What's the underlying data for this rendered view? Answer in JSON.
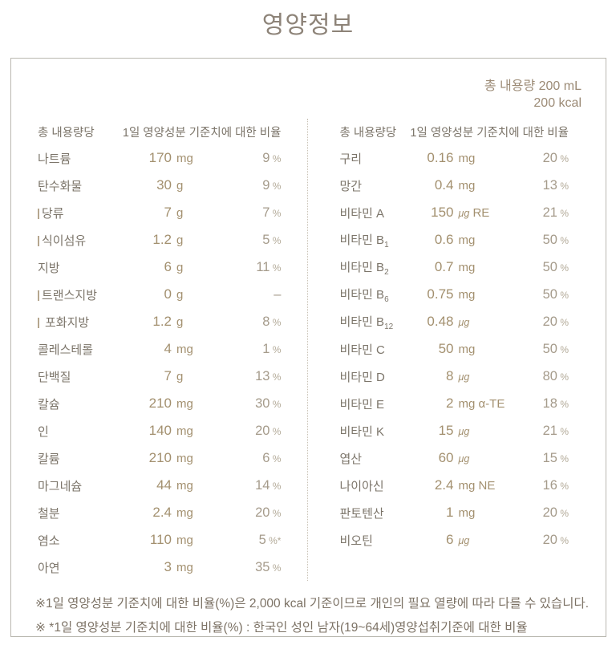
{
  "title": "영양정보",
  "total": {
    "line1": "총 내용량 200 mL",
    "line2": "200 kcal"
  },
  "table_header": {
    "col1": "총 내용량당",
    "col2": "1일 영양성분 기준치에 대한 비율"
  },
  "left_rows": [
    {
      "label": "나트륨",
      "amount": "170",
      "unit": "mg",
      "dv": "9",
      "dv_sym": "%"
    },
    {
      "label": "탄수화물",
      "amount": "30",
      "unit": "g",
      "dv": "9",
      "dv_sym": "%"
    },
    {
      "label": "당류",
      "indent": true,
      "amount": "7",
      "unit": "g",
      "dv": "7",
      "dv_sym": "%"
    },
    {
      "label": "식이섬유",
      "indent": true,
      "amount": "1.2",
      "unit": "g",
      "dv": "5",
      "dv_sym": "%"
    },
    {
      "label": "지방",
      "amount": "6",
      "unit": "g",
      "dv": "11",
      "dv_sym": "%"
    },
    {
      "label": "트랜스지방",
      "indent": true,
      "amount": "0",
      "unit": "g",
      "dv": "–",
      "dv_sym": ""
    },
    {
      "label": "포화지방",
      "indent": true,
      "indent_gap": true,
      "amount": "1.2",
      "unit": "g",
      "dv": "8",
      "dv_sym": "%"
    },
    {
      "label": "콜레스테롤",
      "amount": "4",
      "unit": "mg",
      "dv": "1",
      "dv_sym": "%"
    },
    {
      "label": "단백질",
      "amount": "7",
      "unit": "g",
      "dv": "13",
      "dv_sym": "%"
    },
    {
      "label": "칼슘",
      "amount": "210",
      "unit": "mg",
      "dv": "30",
      "dv_sym": "%"
    },
    {
      "label": "인",
      "amount": "140",
      "unit": "mg",
      "dv": "20",
      "dv_sym": "%"
    },
    {
      "label": "칼륨",
      "amount": "210",
      "unit": "mg",
      "dv": "6",
      "dv_sym": "%"
    },
    {
      "label": "마그네슘",
      "amount": "44",
      "unit": "mg",
      "dv": "14",
      "dv_sym": "%"
    },
    {
      "label": "철분",
      "amount": "2.4",
      "unit": "mg",
      "dv": "20",
      "dv_sym": "%"
    },
    {
      "label": "염소",
      "amount": "110",
      "unit": "mg",
      "dv": "5",
      "dv_sym": "%*"
    },
    {
      "label": "아연",
      "amount": "3",
      "unit": "mg",
      "dv": "35",
      "dv_sym": "%"
    }
  ],
  "right_rows": [
    {
      "label": "구리",
      "amount": "0.16",
      "unit": "mg",
      "dv": "20",
      "dv_sym": "%"
    },
    {
      "label": "망간",
      "amount": "0.4",
      "unit": "mg",
      "dv": "13",
      "dv_sym": "%"
    },
    {
      "label": "비타민 A",
      "amount": "150",
      "unit": "μg",
      "unit2": "RE",
      "dv": "21",
      "dv_sym": "%"
    },
    {
      "label": "비타민 B",
      "label_sub": "1",
      "amount": "0.6",
      "unit": "mg",
      "dv": "50",
      "dv_sym": "%"
    },
    {
      "label": "비타민 B",
      "label_sub": "2",
      "amount": "0.7",
      "unit": "mg",
      "dv": "50",
      "dv_sym": "%"
    },
    {
      "label": "비타민 B",
      "label_sub": "6",
      "amount": "0.75",
      "unit": "mg",
      "dv": "50",
      "dv_sym": "%"
    },
    {
      "label": "비타민 B",
      "label_sub": "12",
      "amount": "0.48",
      "unit": "μg",
      "dv": "20",
      "dv_sym": "%"
    },
    {
      "label": "비타민 C",
      "amount": "50",
      "unit": "mg",
      "dv": "50",
      "dv_sym": "%"
    },
    {
      "label": "비타민 D",
      "amount": "8",
      "unit": "μg",
      "dv": "80",
      "dv_sym": "%"
    },
    {
      "label": "비타민 E",
      "amount": "2",
      "unit": "mg",
      "unit2": "α-TE",
      "dv": "18",
      "dv_sym": "%"
    },
    {
      "label": "비타민 K",
      "amount": "15",
      "unit": "μg",
      "dv": "21",
      "dv_sym": "%"
    },
    {
      "label": "엽산",
      "amount": "60",
      "unit": "μg",
      "dv": "15",
      "dv_sym": "%"
    },
    {
      "label": "나이아신",
      "amount": "2.4",
      "unit": "mg",
      "unit2": "NE",
      "dv": "16",
      "dv_sym": "%"
    },
    {
      "label": "판토텐산",
      "amount": "1",
      "unit": "mg",
      "dv": "20",
      "dv_sym": "%"
    },
    {
      "label": "비오틴",
      "amount": "6",
      "unit": "μg",
      "dv": "20",
      "dv_sym": "%"
    }
  ],
  "footnotes": [
    "※1일 영양성분 기준치에 대한 비율(%)은 2,000 kcal 기준이므로 개인의 필요 열량에 따라 다를 수 있습니다.",
    "※ *1일 영양성분 기준치에 대한 비율(%) : 한국인 성인 남자(19~64세)영양섭취기준에 대한 비율"
  ],
  "colors": {
    "title": "#8d8378",
    "border": "#bab8b0",
    "divider_dotted": "#c9c2b5",
    "label_text": "#7c756a",
    "amount_text": "#a3906f",
    "percent_text": "#a59b8b",
    "percent_symbol": "#b2a997",
    "total_text": "#9c8b76",
    "footnote_text": "#7c7265",
    "indent_bar": "#b5a68e",
    "background": "#ffffff"
  }
}
